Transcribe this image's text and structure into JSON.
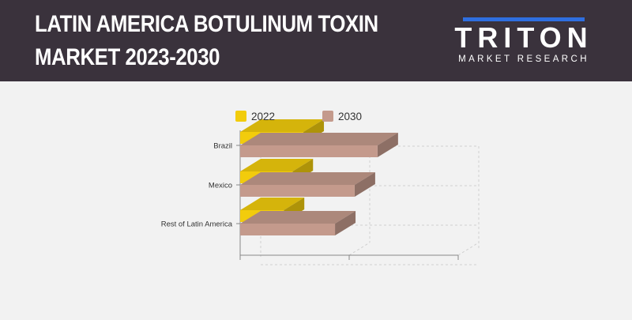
{
  "header": {
    "title_line1": "LATIN AMERICA BOTULINUM TOXIN",
    "title_line2": "MARKET 2023-2030",
    "background_color": "#3a323c"
  },
  "logo": {
    "wordmark": "TRITON",
    "tagline": "MARKET RESEARCH",
    "accent_color": "#2f6fe0"
  },
  "chart_data": {
    "type": "bar",
    "orientation": "horizontal",
    "style": "3d",
    "categories": [
      "Brazil",
      "Mexico",
      "Rest of Latin America"
    ],
    "series": [
      {
        "name": "2022",
        "color": "#f2cc0c",
        "values": [
          0.58,
          0.48,
          0.4
        ]
      },
      {
        "name": "2030",
        "color": "#c49a8c",
        "values": [
          1.26,
          1.05,
          0.87
        ]
      }
    ],
    "xlim": [
      0,
      2
    ],
    "grid": true,
    "legend_position": "top"
  }
}
